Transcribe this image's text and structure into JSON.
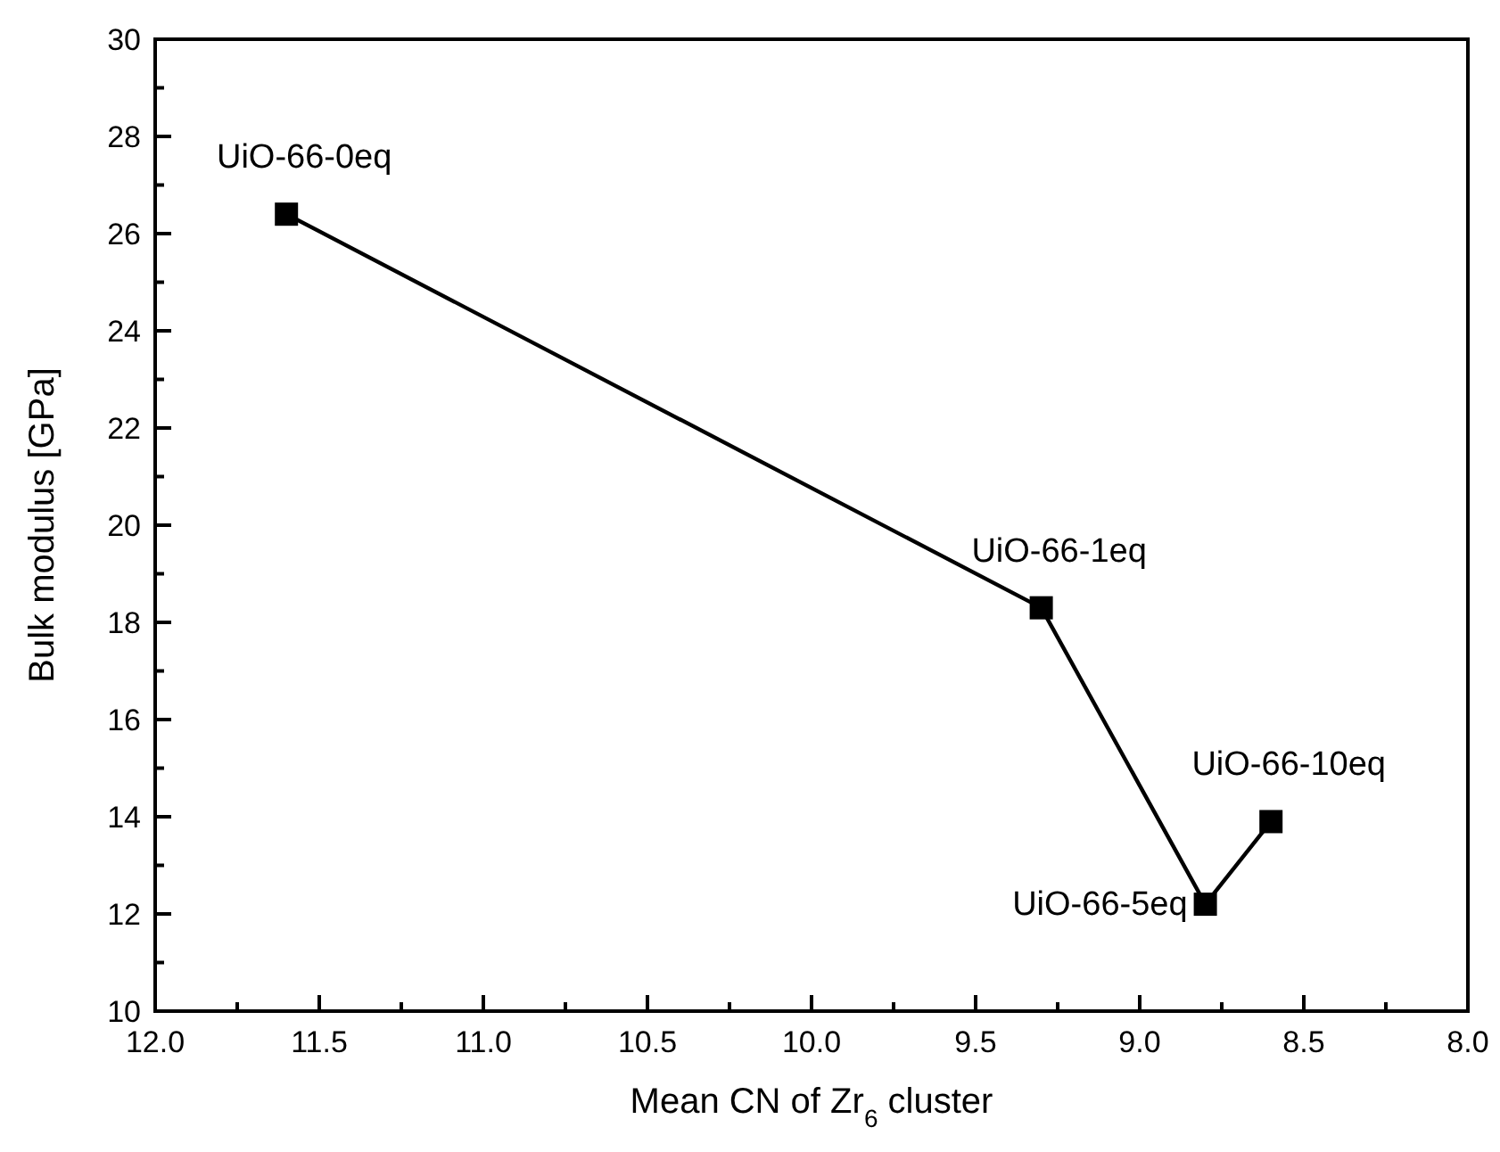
{
  "chart_data": {
    "type": "line",
    "xlabel": "Mean CN of Zr$_{6}$ cluster",
    "ylabel": "Bulk modulus [GPa]",
    "x": [
      11.6,
      9.3,
      8.8,
      8.6
    ],
    "series": [
      {
        "color": "#000000",
        "values": [
          26.4,
          18.3,
          12.2,
          13.9
        ]
      }
    ],
    "marker": "square",
    "line_style": "solid",
    "grid": false,
    "xlim": [
      12,
      8
    ],
    "xticks": [
      {
        "value": 12,
        "label": "12.0"
      },
      {
        "value": 11.75,
        "label": null
      },
      {
        "value": 11.5,
        "label": "11.5"
      },
      {
        "value": 11.25,
        "label": null
      },
      {
        "value": 11,
        "label": "11.0"
      },
      {
        "value": 10.75,
        "label": null
      },
      {
        "value": 10.5,
        "label": "10.5"
      },
      {
        "value": 10.25,
        "label": null
      },
      {
        "value": 10,
        "label": "10.0"
      },
      {
        "value": 9.75,
        "label": null
      },
      {
        "value": 9.5,
        "label": "9.5"
      },
      {
        "value": 9.25,
        "label": null
      },
      {
        "value": 9,
        "label": "9.0"
      },
      {
        "value": 8.75,
        "label": null
      },
      {
        "value": 8.5,
        "label": "8.5"
      },
      {
        "value": 8.25,
        "label": null
      },
      {
        "value": 8,
        "label": "8.0"
      }
    ],
    "ylim": [
      10,
      30
    ],
    "yticks": [
      10,
      {
        "value": 11,
        "label": null
      },
      12,
      {
        "value": 13,
        "label": null
      },
      14,
      {
        "value": 15,
        "label": null
      },
      16,
      {
        "value": 17,
        "label": null
      },
      18,
      {
        "value": 19,
        "label": null
      },
      20,
      {
        "value": 21,
        "label": null
      },
      22,
      {
        "value": 23,
        "label": null
      },
      24,
      {
        "value": 25,
        "label": null
      },
      26,
      {
        "value": 27,
        "label": null
      },
      28,
      {
        "value": 29,
        "label": null
      },
      30
    ],
    "annotations": [
      {
        "text": "UiO-66-0eq",
        "x": 11.6,
        "y": 26.4
      },
      {
        "text": "UiO-66-1eq",
        "x": 9.3,
        "y": 18.3
      },
      {
        "text": "UiO-66-5eq",
        "x": 8.8,
        "y": 12.2
      },
      {
        "text": "UiO-66-10eq",
        "x": 8.6,
        "y": 13.9
      }
    ]
  }
}
